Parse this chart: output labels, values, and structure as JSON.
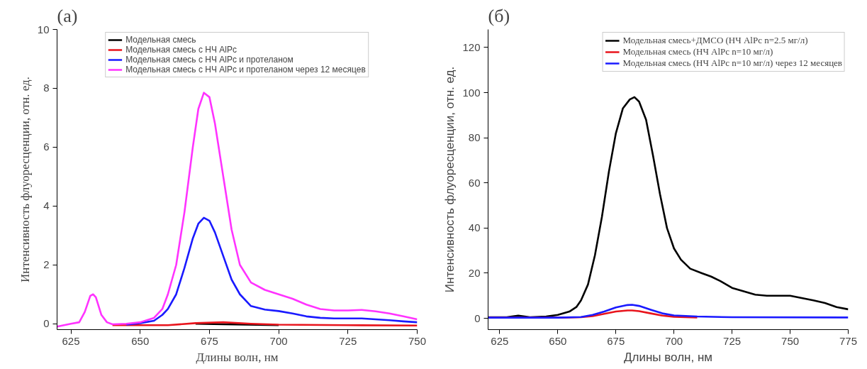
{
  "chart_data": [
    {
      "type": "line",
      "title": "(a)",
      "xlabel": "Длины волн, нм",
      "ylabel": "Интенсивность флуоресценции, отн. ед.",
      "xlim": [
        620,
        750
      ],
      "ylim": [
        -0.2,
        10
      ],
      "xticks": [
        625,
        650,
        675,
        700,
        725,
        750
      ],
      "yticks": [
        0,
        2,
        4,
        6,
        8,
        10
      ],
      "grid": false,
      "legend": "top",
      "line_style": "solid",
      "marker": "none",
      "series": [
        {
          "name": "Модельная смесь",
          "color": "#000000",
          "x": [
            670,
            680,
            700
          ],
          "values": [
            0.0,
            -0.02,
            -0.05
          ]
        },
        {
          "name": "Модельная смесь с НЧ AlPc",
          "color": "#e8141c",
          "x": [
            640,
            660,
            670,
            680,
            690,
            700,
            725,
            750
          ],
          "values": [
            -0.05,
            -0.05,
            0.02,
            0.05,
            0.0,
            -0.03,
            -0.05,
            -0.06
          ]
        },
        {
          "name": "Модельная смесь с НЧ AlPc и протеланом",
          "color": "#1a1aff",
          "x": [
            645,
            650,
            655,
            658,
            660,
            663,
            666,
            669,
            671,
            673,
            675,
            677,
            680,
            683,
            686,
            690,
            695,
            700,
            705,
            710,
            715,
            720,
            725,
            730,
            735,
            740,
            745,
            750
          ],
          "values": [
            -0.03,
            0.02,
            0.1,
            0.3,
            0.5,
            1.0,
            1.9,
            2.9,
            3.4,
            3.6,
            3.5,
            3.1,
            2.3,
            1.5,
            1.0,
            0.6,
            0.48,
            0.43,
            0.35,
            0.25,
            0.2,
            0.18,
            0.18,
            0.18,
            0.15,
            0.12,
            0.08,
            0.05
          ]
        },
        {
          "name": "Модельная смесь с НЧ AlPc и протеланом через 12 месяцев",
          "color": "#ff33ff",
          "x": [
            620,
            625,
            628,
            630,
            632,
            633,
            634,
            636,
            638,
            640,
            645,
            650,
            655,
            658,
            660,
            663,
            666,
            669,
            671,
            673,
            675,
            677,
            680,
            683,
            686,
            690,
            695,
            700,
            705,
            710,
            715,
            720,
            725,
            730,
            735,
            740,
            745,
            750
          ],
          "values": [
            -0.1,
            0.0,
            0.05,
            0.4,
            0.95,
            1.0,
            0.9,
            0.3,
            0.05,
            -0.02,
            0.0,
            0.05,
            0.2,
            0.5,
            1.0,
            2.0,
            3.8,
            6.0,
            7.3,
            7.85,
            7.7,
            6.8,
            5.0,
            3.2,
            2.0,
            1.4,
            1.15,
            1.0,
            0.85,
            0.65,
            0.5,
            0.45,
            0.45,
            0.47,
            0.42,
            0.35,
            0.25,
            0.15
          ]
        }
      ]
    },
    {
      "type": "line",
      "title": "(б)",
      "xlabel": "Длины волн, нм",
      "ylabel": "Интенсивность флуоресценции, отн. ед.",
      "xlim": [
        620,
        775
      ],
      "ylim": [
        -5,
        128
      ],
      "xticks": [
        625,
        650,
        675,
        700,
        725,
        750,
        775
      ],
      "yticks": [
        0,
        20,
        40,
        60,
        80,
        100,
        120
      ],
      "grid": false,
      "legend": "top right",
      "line_style": "solid",
      "marker": "none",
      "series": [
        {
          "name": "Модельная смесь+ДМСО (НЧ AlPc n=2.5 мг/л)",
          "color": "#000000",
          "x": [
            620,
            628,
            633,
            638,
            645,
            650,
            655,
            658,
            660,
            663,
            666,
            669,
            672,
            675,
            678,
            681,
            683,
            685,
            688,
            691,
            694,
            697,
            700,
            703,
            707,
            712,
            716,
            720,
            725,
            730,
            735,
            740,
            745,
            750,
            755,
            760,
            765,
            770,
            775
          ],
          "values": [
            0.5,
            0.5,
            1.2,
            0.5,
            0.8,
            1.5,
            3,
            5,
            8,
            15,
            28,
            45,
            65,
            82,
            93,
            97,
            98,
            96,
            88,
            72,
            55,
            40,
            31,
            26,
            22,
            20,
            18.5,
            16.5,
            13.5,
            12,
            10.5,
            10,
            10,
            10,
            9,
            8,
            6.8,
            5,
            4
          ]
        },
        {
          "name": "Модельная смесь (НЧ AlPc n=10 мг/л)",
          "color": "#e8141c",
          "x": [
            620,
            650,
            660,
            665,
            670,
            675,
            680,
            682,
            685,
            690,
            695,
            700,
            710
          ],
          "values": [
            0.3,
            0.3,
            0.5,
            1,
            2,
            3,
            3.5,
            3.5,
            3.2,
            2.2,
            1.2,
            0.7,
            0.4
          ]
        },
        {
          "name": "Модельная смесь (НЧ AlPc n=10 мг/л) через 12 месяцев",
          "color": "#1a1aff",
          "x": [
            620,
            650,
            660,
            665,
            670,
            675,
            680,
            682,
            685,
            690,
            695,
            700,
            710,
            725,
            775
          ],
          "values": [
            0.3,
            0.3,
            0.6,
            1.5,
            3,
            4.8,
            5.9,
            6,
            5.5,
            3.8,
            2.2,
            1.3,
            0.8,
            0.5,
            0.4
          ]
        }
      ]
    }
  ]
}
